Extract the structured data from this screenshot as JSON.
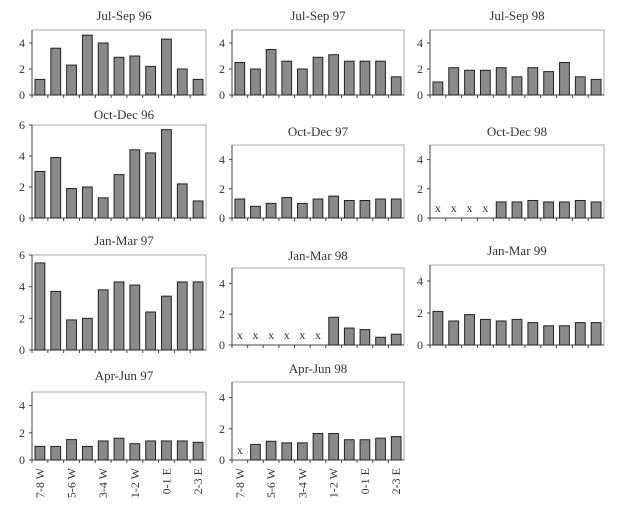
{
  "colors": {
    "bar_fill": "#8a8a8a",
    "bar_stroke": "#222222",
    "axis": "#444444",
    "frame": "#aaaaaa"
  },
  "x_tick_labels": [
    "7-8 W",
    "5-6 W",
    "3-4 W",
    "1-2 W",
    "0-1 E",
    "2-3 E"
  ],
  "chart_data": [
    {
      "type": "bar",
      "title": "Jul-Sep 96",
      "ylim": [
        0,
        5
      ],
      "yticks": [
        "0",
        "2",
        "4"
      ],
      "grid": false,
      "values": [
        1.2,
        3.6,
        2.3,
        4.6,
        4.0,
        2.9,
        3.0,
        2.2,
        4.3,
        2.0,
        1.2
      ],
      "missing_marker": "x",
      "missing": []
    },
    {
      "type": "bar",
      "title": "Jul-Sep 97",
      "ylim": [
        0,
        5
      ],
      "yticks": [
        "0",
        "2",
        "4"
      ],
      "grid": false,
      "values": [
        2.5,
        2.0,
        3.5,
        2.6,
        2.0,
        2.9,
        3.1,
        2.6,
        2.6,
        2.6,
        1.4
      ],
      "missing_marker": "x",
      "missing": []
    },
    {
      "type": "bar",
      "title": "Jul-Sep 98",
      "ylim": [
        0,
        5
      ],
      "yticks": [
        "0",
        "2",
        "4"
      ],
      "grid": false,
      "values": [
        1.0,
        2.1,
        1.9,
        1.9,
        2.1,
        1.4,
        2.1,
        1.8,
        2.5,
        1.4,
        1.2
      ],
      "missing_marker": "x",
      "missing": []
    },
    {
      "type": "bar",
      "title": "Oct-Dec 96",
      "ylim": [
        0,
        6
      ],
      "yticks": [
        "0",
        "2",
        "4",
        "6"
      ],
      "grid": false,
      "values": [
        3.0,
        3.9,
        1.9,
        2.0,
        1.3,
        2.8,
        4.4,
        4.2,
        5.7,
        2.2,
        1.1
      ],
      "missing_marker": "x",
      "missing": []
    },
    {
      "type": "bar",
      "title": "Oct-Dec 97",
      "ylim": [
        0,
        5
      ],
      "yticks": [
        "0",
        "2",
        "4"
      ],
      "grid": false,
      "values": [
        1.3,
        0.8,
        1.0,
        1.4,
        1.0,
        1.3,
        1.5,
        1.2,
        1.2,
        1.3,
        1.3
      ],
      "missing_marker": "x",
      "missing": []
    },
    {
      "type": "bar",
      "title": "Oct-Dec 98",
      "ylim": [
        0,
        5
      ],
      "yticks": [
        "0",
        "2",
        "4"
      ],
      "grid": false,
      "values": [
        null,
        null,
        null,
        null,
        1.1,
        1.1,
        1.2,
        1.1,
        1.1,
        1.2,
        1.1
      ],
      "missing_marker": "x",
      "missing": [
        0,
        1,
        2,
        3
      ]
    },
    {
      "type": "bar",
      "title": "Jan-Mar 97",
      "ylim": [
        0,
        6
      ],
      "yticks": [
        "0",
        "2",
        "4",
        "6"
      ],
      "grid": false,
      "values": [
        5.5,
        3.7,
        1.9,
        2.0,
        3.8,
        4.3,
        4.1,
        2.4,
        3.4,
        4.3,
        4.3
      ],
      "missing_marker": "x",
      "missing": []
    },
    {
      "type": "bar",
      "title": "Jan-Mar 98",
      "ylim": [
        0,
        5
      ],
      "yticks": [
        "0",
        "2",
        "4"
      ],
      "grid": false,
      "values": [
        null,
        null,
        null,
        null,
        null,
        null,
        1.8,
        1.1,
        1.0,
        0.5,
        0.7
      ],
      "missing_marker": "x",
      "missing": [
        0,
        1,
        2,
        3,
        4,
        5
      ]
    },
    {
      "type": "bar",
      "title": "Jan-Mar 99",
      "ylim": [
        0,
        5
      ],
      "yticks": [
        "0",
        "2",
        "4"
      ],
      "grid": false,
      "values": [
        2.1,
        1.5,
        1.9,
        1.6,
        1.5,
        1.6,
        1.4,
        1.2,
        1.2,
        1.4,
        1.4
      ],
      "missing_marker": "x",
      "missing": []
    },
    {
      "type": "bar",
      "title": "Apr-Jun 97",
      "ylim": [
        0,
        5
      ],
      "yticks": [
        "0",
        "2",
        "4"
      ],
      "grid": false,
      "values": [
        1.0,
        1.0,
        1.5,
        1.0,
        1.4,
        1.6,
        1.2,
        1.4,
        1.4,
        1.4,
        1.3
      ],
      "missing_marker": "x",
      "missing": []
    },
    {
      "type": "bar",
      "title": "Apr-Jun 98",
      "ylim": [
        0,
        5
      ],
      "yticks": [
        "0",
        "2",
        "4"
      ],
      "grid": false,
      "values": [
        null,
        1.0,
        1.2,
        1.1,
        1.1,
        1.7,
        1.7,
        1.3,
        1.3,
        1.4,
        1.5
      ],
      "missing_marker": "x",
      "missing": [
        0
      ]
    }
  ]
}
